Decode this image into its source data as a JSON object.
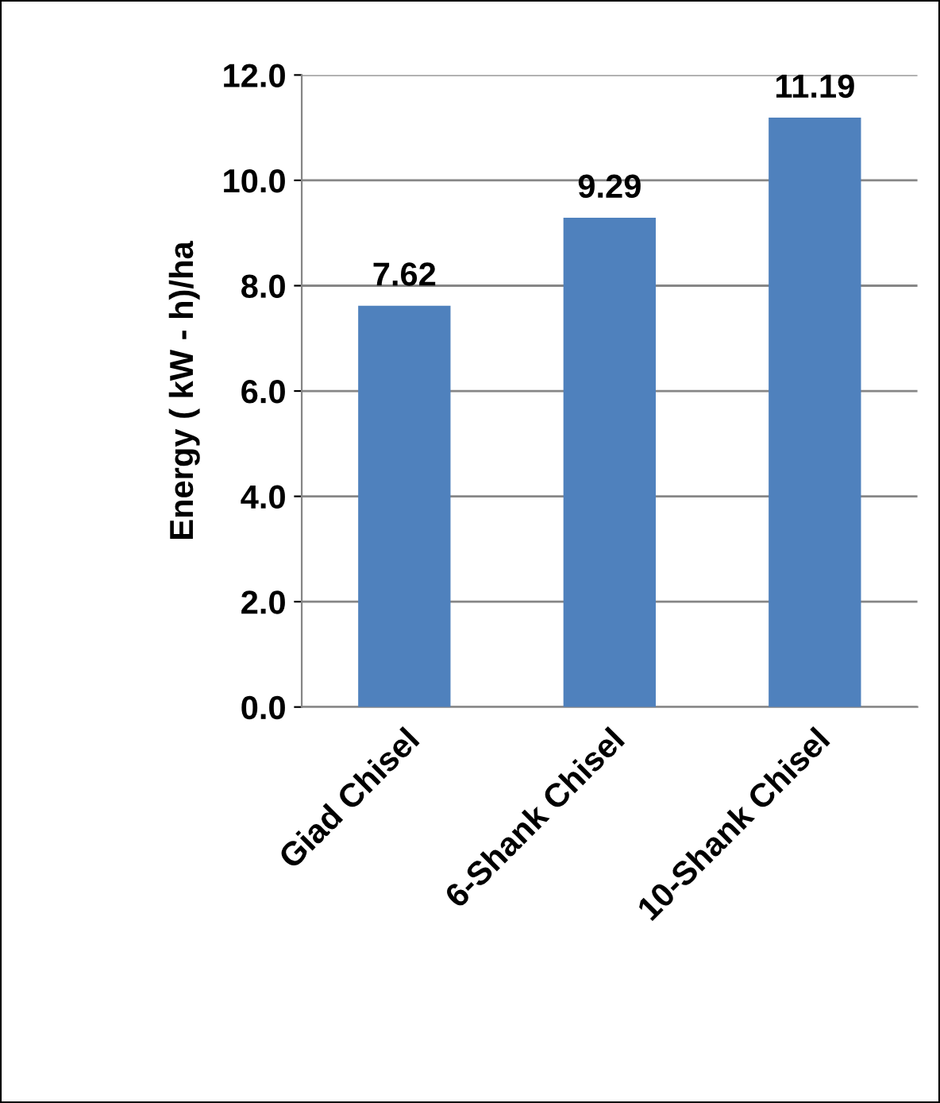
{
  "chart_data": {
    "type": "bar",
    "ylabel": "Energy ( kW - h)/ha",
    "categories": [
      "Giad Chisel",
      "6-Shank Chisel",
      "10-Shank Chisel"
    ],
    "values": [
      7.62,
      9.29,
      11.19
    ],
    "color": "#4f81bd",
    "ylim": [
      0,
      12
    ],
    "yticks": [
      {
        "value": 0,
        "label": "0.0"
      },
      {
        "value": 2,
        "label": "2.0"
      },
      {
        "value": 4,
        "label": "4.0"
      },
      {
        "value": 6,
        "label": "6.0"
      },
      {
        "value": 8,
        "label": "8.0"
      },
      {
        "value": 10,
        "label": "10.0"
      },
      {
        "value": 12,
        "label": "12.0"
      }
    ],
    "grid": "y",
    "data_labels": true
  }
}
